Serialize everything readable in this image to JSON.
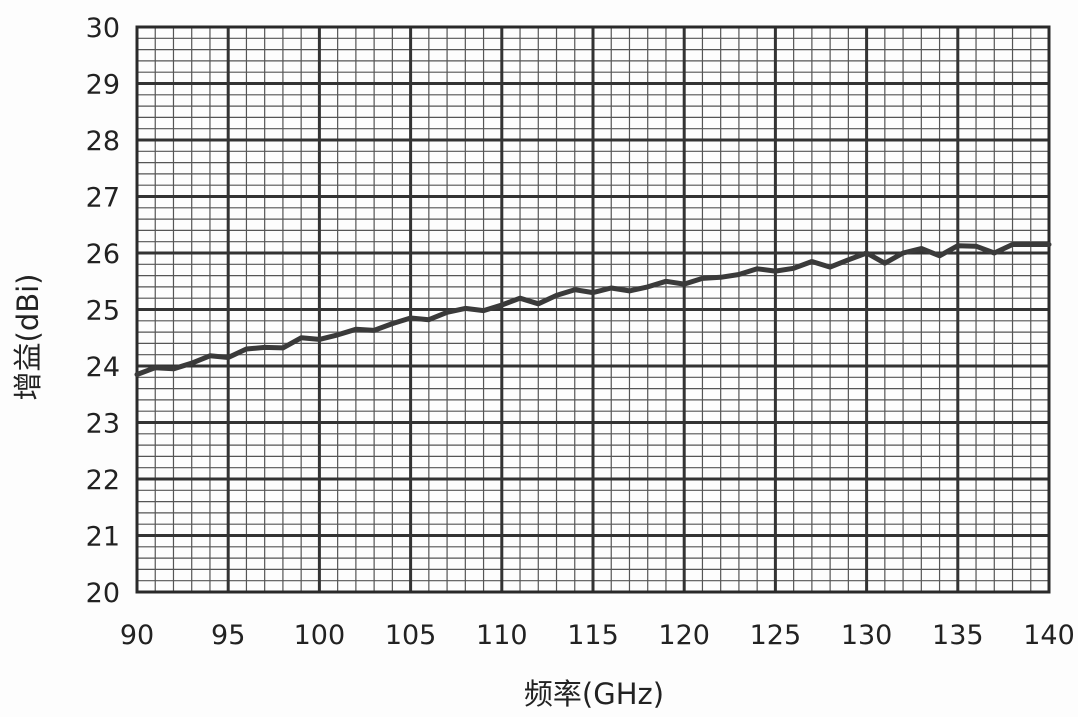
{
  "chart_data": {
    "type": "line",
    "title": "",
    "xlabel": "频率(GHz)",
    "ylabel": "增益(dBi)",
    "xlim": [
      90,
      140
    ],
    "ylim": [
      20,
      30
    ],
    "x_ticks": [
      90,
      95,
      100,
      105,
      110,
      115,
      120,
      125,
      130,
      135,
      140
    ],
    "y_ticks": [
      20,
      21,
      22,
      23,
      24,
      25,
      26,
      27,
      28,
      29,
      30
    ],
    "grid": true,
    "legend": "none",
    "colors": {
      "line": "#3a3a3a",
      "grid_major": "#333333",
      "grid_minor": "#555555"
    },
    "series": [
      {
        "x": [
          90,
          91,
          92,
          93,
          94,
          95,
          96,
          97,
          98,
          99,
          100,
          101,
          102,
          103,
          104,
          105,
          106,
          107,
          108,
          109,
          110,
          111,
          112,
          113,
          114,
          115,
          116,
          117,
          118,
          119,
          120,
          121,
          122,
          123,
          124,
          125,
          126,
          127,
          128,
          129,
          130,
          131,
          132,
          133,
          134,
          135,
          136,
          137,
          138,
          139,
          140
        ],
        "y": [
          23.85,
          23.97,
          23.95,
          24.05,
          24.18,
          24.15,
          24.3,
          24.33,
          24.32,
          24.5,
          24.47,
          24.55,
          24.65,
          24.63,
          24.75,
          24.85,
          24.82,
          24.95,
          25.02,
          24.98,
          25.08,
          25.2,
          25.1,
          25.25,
          25.35,
          25.3,
          25.38,
          25.33,
          25.4,
          25.5,
          25.45,
          25.55,
          25.57,
          25.62,
          25.72,
          25.68,
          25.73,
          25.85,
          25.75,
          25.88,
          26.0,
          25.82,
          26.0,
          26.08,
          25.95,
          26.13,
          26.12,
          26.0,
          26.15,
          26.15,
          26.15
        ]
      }
    ]
  }
}
